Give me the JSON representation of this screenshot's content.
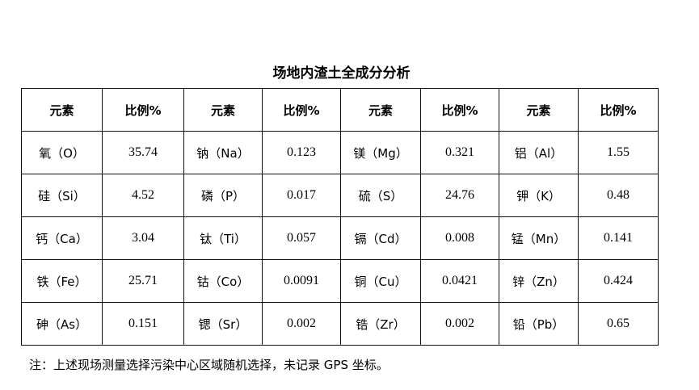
{
  "title": "场地内渣土全成分分析",
  "headers": [
    "元素",
    "比例%",
    "元素",
    "比例%",
    "元素",
    "比例%",
    "元素",
    "比例%"
  ],
  "rows": [
    [
      "氧（O）",
      "35.74",
      "钠（Na）",
      "0.123",
      "镁（Mg）",
      "0.321",
      "铝（Al）",
      "1.55"
    ],
    [
      "硅（Si）",
      "4.52",
      "磷（P）",
      "0.017",
      "硫（S）",
      "24.76",
      "钾（K）",
      "0.48"
    ],
    [
      "钙（Ca）",
      "3.04",
      "钛（Ti）",
      "0.057",
      "镉（Cd）",
      "0.008",
      "锰（Mn）",
      "0.141"
    ],
    [
      "铁（Fe）",
      "25.71",
      "钴（Co）",
      "0.0091",
      "铜（Cu）",
      "0.0421",
      "锌（Zn）",
      "0.424"
    ],
    [
      "砷（As）",
      "0.151",
      "锶（Sr）",
      "0.002",
      "锆（Zr）",
      "0.002",
      "铅（Pb）",
      "0.65"
    ]
  ],
  "note": "注：上述现场测量选择污染中心区域随机选择，未记录 GPS 坐标。"
}
